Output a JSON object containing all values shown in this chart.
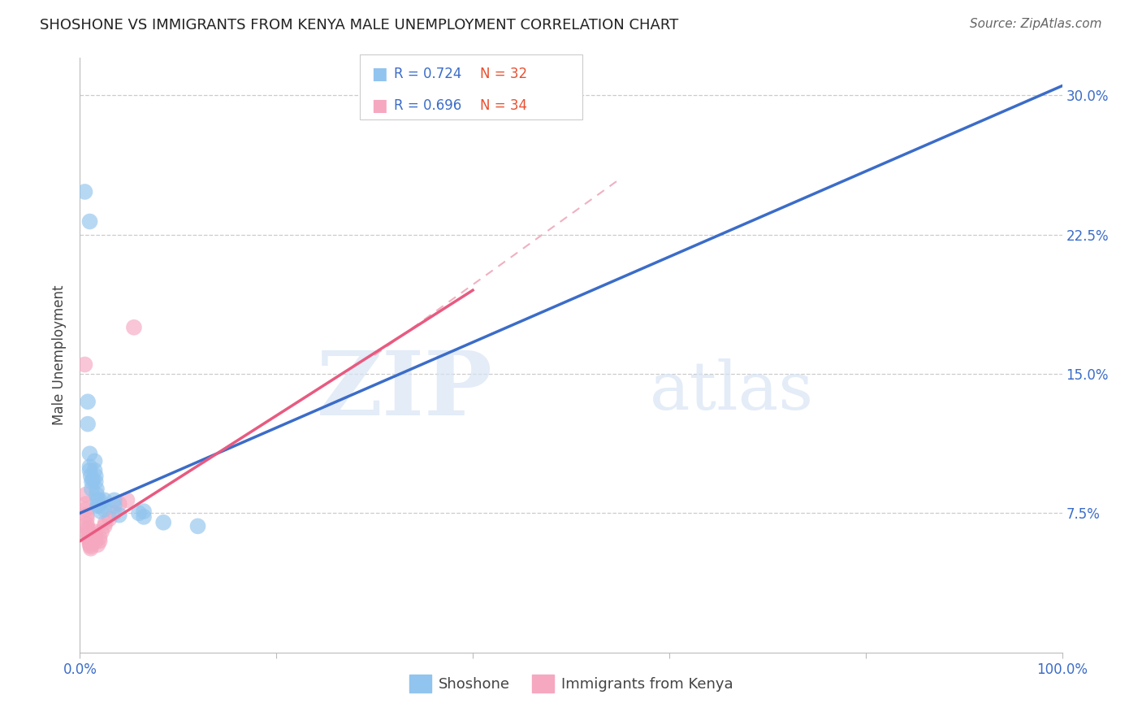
{
  "title": "SHOSHONE VS IMMIGRANTS FROM KENYA MALE UNEMPLOYMENT CORRELATION CHART",
  "source": "Source: ZipAtlas.com",
  "ylabel": "Male Unemployment",
  "xlim": [
    0.0,
    1.0
  ],
  "ylim": [
    0.0,
    0.32
  ],
  "xticks": [
    0.0,
    0.2,
    0.4,
    0.6,
    0.8,
    1.0
  ],
  "xticklabels": [
    "0.0%",
    "",
    "",
    "",
    "",
    "100.0%"
  ],
  "yticks": [
    0.075,
    0.15,
    0.225,
    0.3
  ],
  "yticklabels": [
    "7.5%",
    "15.0%",
    "22.5%",
    "30.0%"
  ],
  "background_color": "#ffffff",
  "grid_color": "#cccccc",
  "watermark_zip": "ZIP",
  "watermark_atlas": "atlas",
  "legend_r1": "R = 0.724",
  "legend_n1": "N = 32",
  "legend_r2": "R = 0.696",
  "legend_n2": "N = 34",
  "shoshone_color": "#91C4EE",
  "kenya_color": "#F5A8C0",
  "shoshone_line_color": "#3B6CC8",
  "kenya_line_color": "#E85A80",
  "kenya_dash_color": "#F0B0C0",
  "shoshone_points": [
    [
      0.005,
      0.248
    ],
    [
      0.01,
      0.232
    ],
    [
      0.008,
      0.135
    ],
    [
      0.008,
      0.123
    ],
    [
      0.01,
      0.107
    ],
    [
      0.01,
      0.1
    ],
    [
      0.01,
      0.098
    ],
    [
      0.011,
      0.095
    ],
    [
      0.012,
      0.092
    ],
    [
      0.012,
      0.088
    ],
    [
      0.013,
      0.093
    ],
    [
      0.015,
      0.103
    ],
    [
      0.015,
      0.098
    ],
    [
      0.016,
      0.095
    ],
    [
      0.016,
      0.092
    ],
    [
      0.017,
      0.088
    ],
    [
      0.017,
      0.085
    ],
    [
      0.018,
      0.082
    ],
    [
      0.018,
      0.079
    ],
    [
      0.02,
      0.082
    ],
    [
      0.02,
      0.079
    ],
    [
      0.021,
      0.076
    ],
    [
      0.025,
      0.082
    ],
    [
      0.025,
      0.077
    ],
    [
      0.035,
      0.082
    ],
    [
      0.035,
      0.079
    ],
    [
      0.04,
      0.074
    ],
    [
      0.06,
      0.075
    ],
    [
      0.065,
      0.076
    ],
    [
      0.065,
      0.073
    ],
    [
      0.085,
      0.07
    ],
    [
      0.12,
      0.068
    ]
  ],
  "kenya_points": [
    [
      0.005,
      0.155
    ],
    [
      0.006,
      0.085
    ],
    [
      0.006,
      0.08
    ],
    [
      0.006,
      0.077
    ],
    [
      0.007,
      0.074
    ],
    [
      0.007,
      0.072
    ],
    [
      0.007,
      0.069
    ],
    [
      0.008,
      0.067
    ],
    [
      0.008,
      0.066
    ],
    [
      0.008,
      0.064
    ],
    [
      0.009,
      0.063
    ],
    [
      0.009,
      0.062
    ],
    [
      0.009,
      0.061
    ],
    [
      0.01,
      0.06
    ],
    [
      0.01,
      0.059
    ],
    [
      0.01,
      0.058
    ],
    [
      0.011,
      0.057
    ],
    [
      0.011,
      0.056
    ],
    [
      0.012,
      0.06
    ],
    [
      0.013,
      0.062
    ],
    [
      0.015,
      0.065
    ],
    [
      0.015,
      0.063
    ],
    [
      0.016,
      0.06
    ],
    [
      0.018,
      0.058
    ],
    [
      0.02,
      0.062
    ],
    [
      0.02,
      0.06
    ],
    [
      0.022,
      0.065
    ],
    [
      0.025,
      0.068
    ],
    [
      0.026,
      0.07
    ],
    [
      0.03,
      0.072
    ],
    [
      0.035,
      0.075
    ],
    [
      0.04,
      0.08
    ],
    [
      0.048,
      0.082
    ],
    [
      0.055,
      0.175
    ]
  ],
  "shoshone_line": {
    "x0": 0.0,
    "y0": 0.075,
    "x1": 1.0,
    "y1": 0.305
  },
  "kenya_solid_line": {
    "x0": 0.0,
    "y0": 0.06,
    "x1": 0.4,
    "y1": 0.195
  },
  "kenya_dash_line": {
    "x0": 0.3,
    "y0": 0.16,
    "x1": 0.55,
    "y1": 0.255
  }
}
